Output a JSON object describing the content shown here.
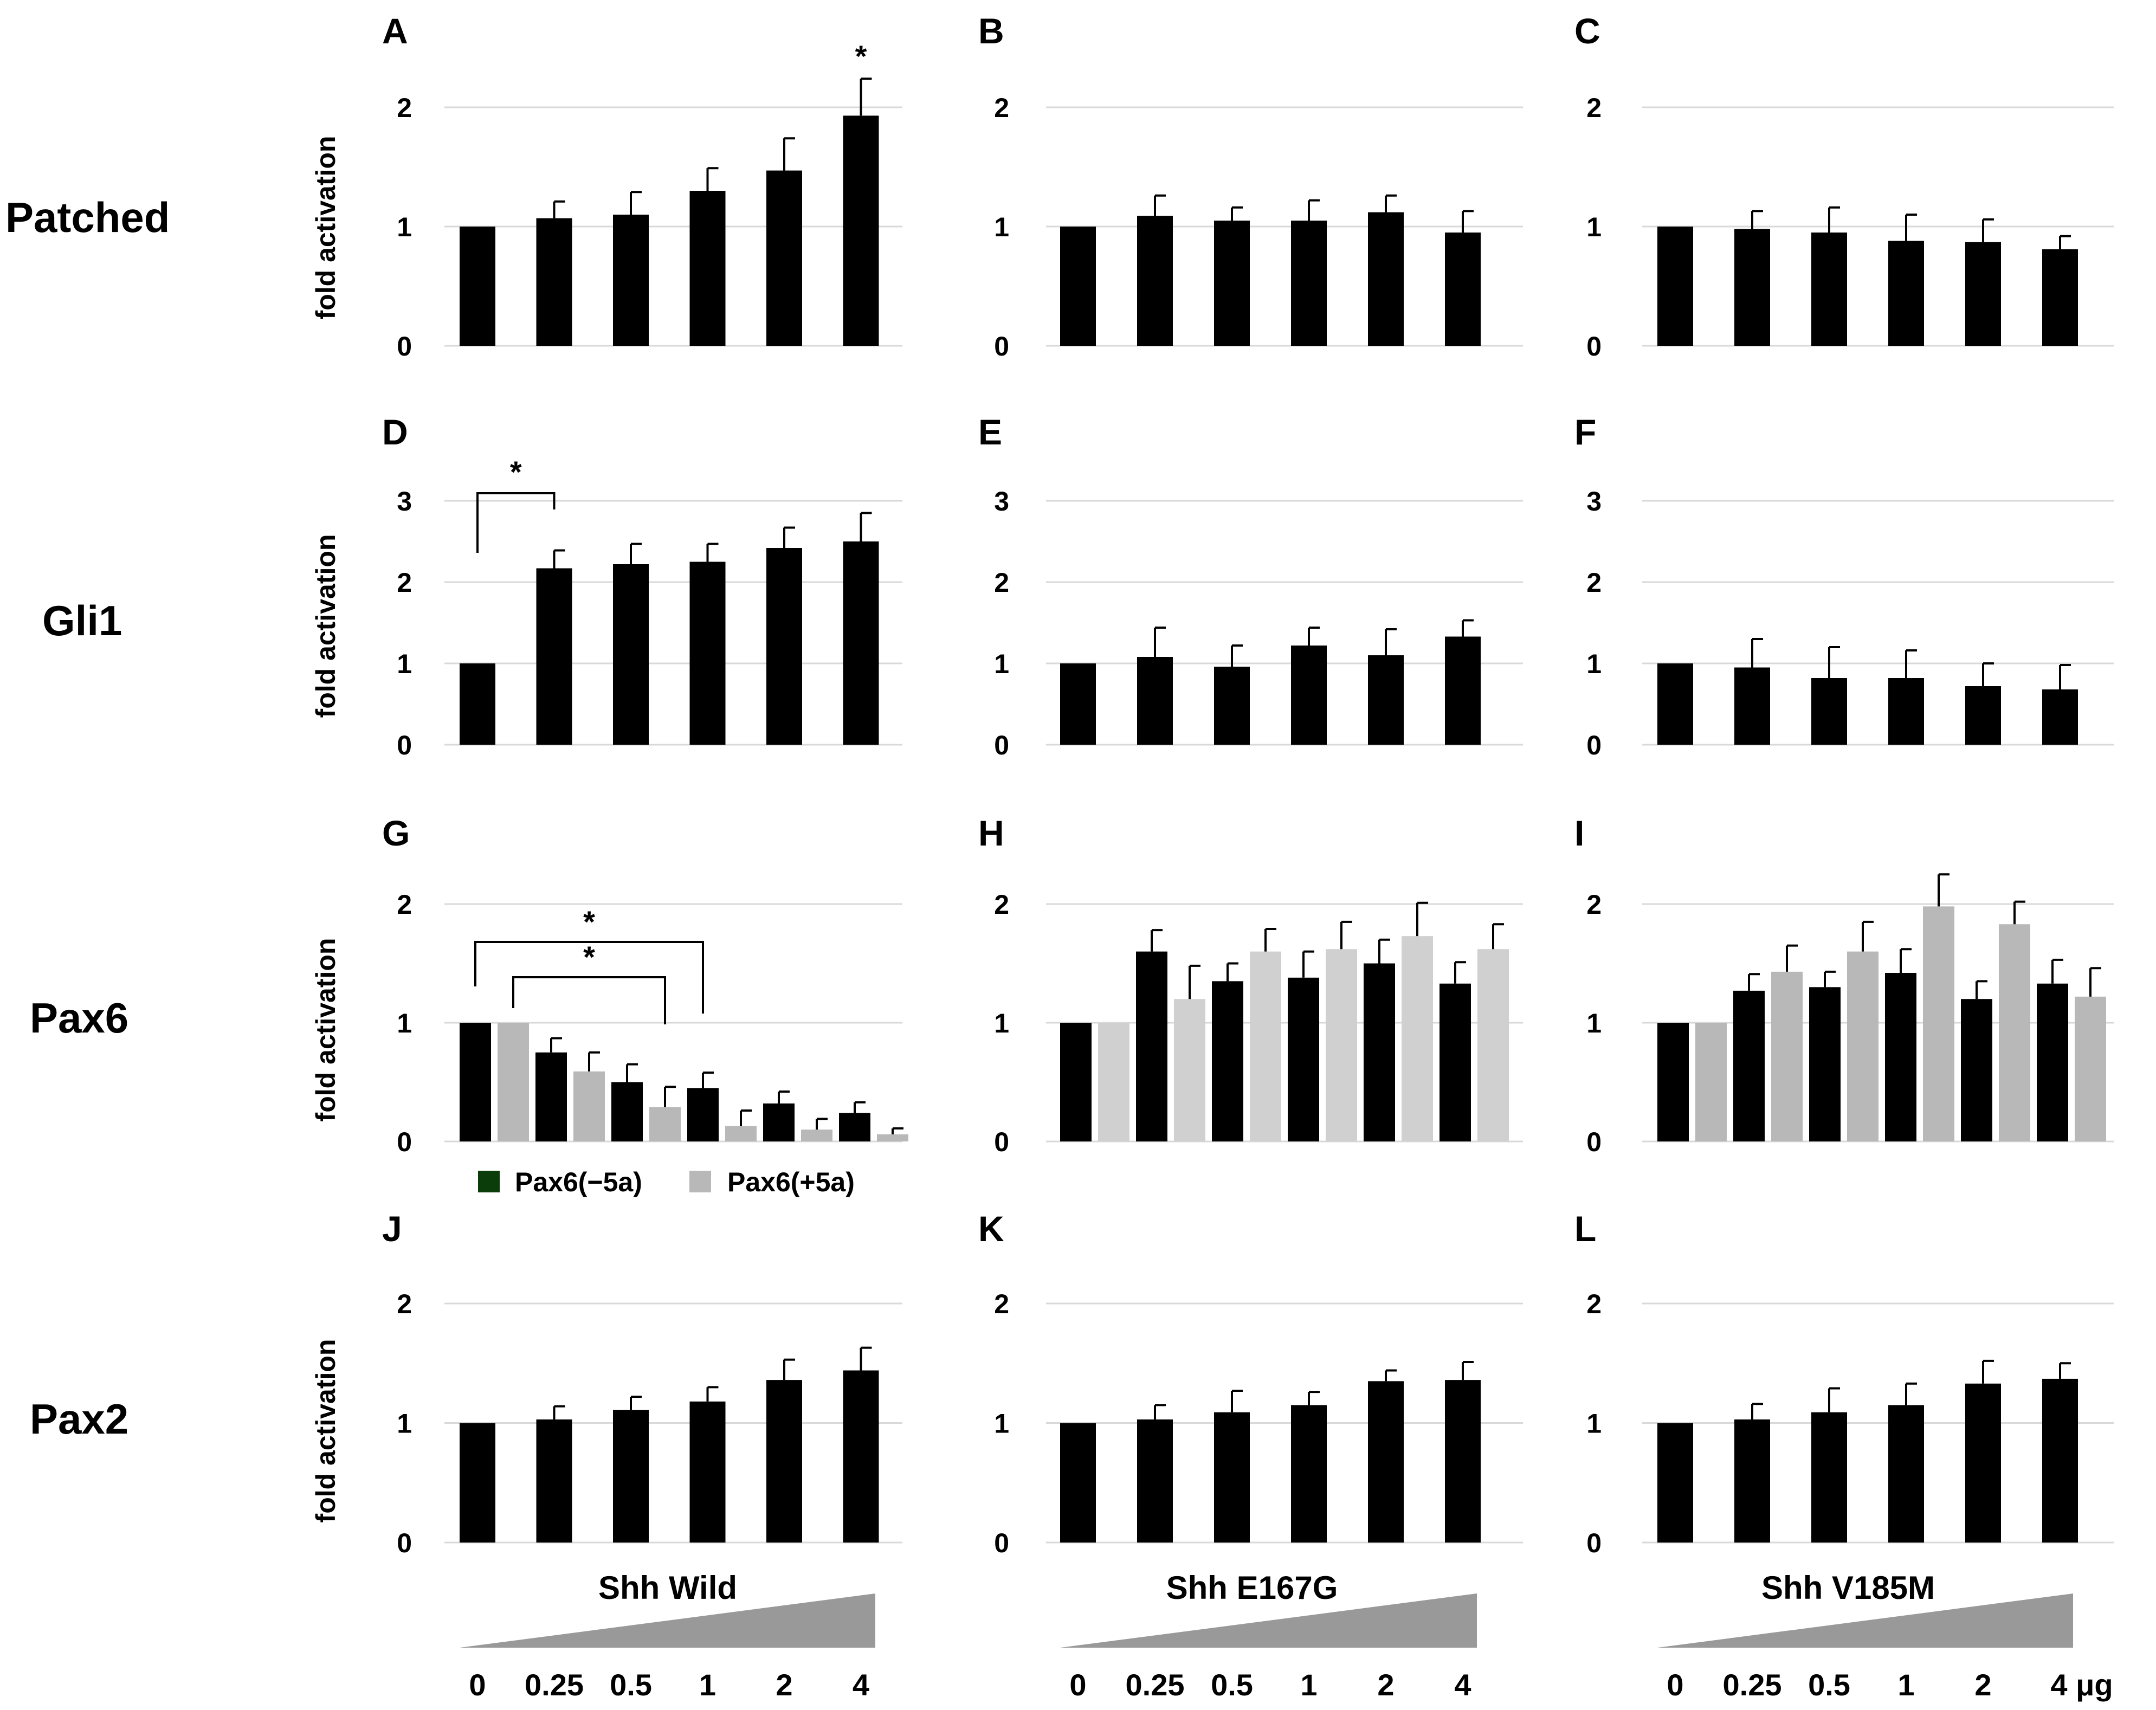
{
  "figure": {
    "row_labels": [
      "Patched",
      "Gli1",
      "Pax6",
      "Pax2"
    ],
    "ylabel": "fold activation",
    "column_titles": [
      "Shh Wild",
      "Shh E167G",
      "Shh V185M"
    ],
    "dose_labels": [
      "0",
      "0.25",
      "0.5",
      "1",
      "2",
      "4"
    ],
    "dose_unit": "μg",
    "legend": [
      {
        "label": "Pax6(−5a)",
        "color": "#0b3d0b"
      },
      {
        "label": "Pax6(+5a)",
        "color": "#b8b8b8"
      }
    ],
    "colors": {
      "bar_dark": "#000000",
      "bar_light": "#b8b8b8",
      "bar_lighter": "#d0d0d0",
      "grid": "#d9d9d9",
      "wedge": "#999999"
    }
  },
  "chart_data": [
    {
      "panel": "A",
      "type": "bar",
      "row": "Patched",
      "column": "Shh Wild",
      "ylim": [
        0,
        2
      ],
      "yticks": [
        0,
        1,
        2
      ],
      "categories": [
        "0",
        "0.25",
        "0.5",
        "1",
        "2",
        "4"
      ],
      "series": [
        {
          "values": [
            1.0,
            1.07,
            1.1,
            1.3,
            1.47,
            1.93
          ],
          "errors": [
            0,
            0.14,
            0.19,
            0.19,
            0.27,
            0.31
          ]
        }
      ],
      "annotations": [
        {
          "text": "*",
          "bar": 5
        }
      ]
    },
    {
      "panel": "B",
      "type": "bar",
      "row": "Patched",
      "column": "Shh E167G",
      "ylim": [
        0,
        2
      ],
      "yticks": [
        0,
        1,
        2
      ],
      "categories": [
        "0",
        "0.25",
        "0.5",
        "1",
        "2",
        "4"
      ],
      "series": [
        {
          "values": [
            1.0,
            1.09,
            1.05,
            1.05,
            1.12,
            0.95
          ],
          "errors": [
            0,
            0.17,
            0.11,
            0.17,
            0.14,
            0.18
          ]
        }
      ]
    },
    {
      "panel": "C",
      "type": "bar",
      "row": "Patched",
      "column": "Shh V185M",
      "ylim": [
        0,
        2
      ],
      "yticks": [
        0,
        1,
        2
      ],
      "categories": [
        "0",
        "0.25",
        "0.5",
        "1",
        "2",
        "4"
      ],
      "series": [
        {
          "values": [
            1.0,
            0.98,
            0.95,
            0.88,
            0.87,
            0.81
          ],
          "errors": [
            0,
            0.15,
            0.21,
            0.22,
            0.19,
            0.11
          ]
        }
      ]
    },
    {
      "panel": "D",
      "type": "bar",
      "row": "Gli1",
      "column": "Shh Wild",
      "ylim": [
        0,
        3
      ],
      "yticks": [
        0,
        1,
        2,
        3
      ],
      "categories": [
        "0",
        "0.25",
        "0.5",
        "1",
        "2",
        "4"
      ],
      "series": [
        {
          "values": [
            1.0,
            2.17,
            2.22,
            2.25,
            2.42,
            2.5
          ],
          "errors": [
            0,
            0.22,
            0.25,
            0.22,
            0.25,
            0.35
          ]
        }
      ],
      "annotations": [
        {
          "text": "*",
          "from": 0,
          "to": 1
        }
      ]
    },
    {
      "panel": "E",
      "type": "bar",
      "row": "Gli1",
      "column": "Shh E167G",
      "ylim": [
        0,
        3
      ],
      "yticks": [
        0,
        1,
        2,
        3
      ],
      "categories": [
        "0",
        "0.25",
        "0.5",
        "1",
        "2",
        "4"
      ],
      "series": [
        {
          "values": [
            1.0,
            1.08,
            0.96,
            1.22,
            1.1,
            1.33
          ],
          "errors": [
            0,
            0.36,
            0.26,
            0.22,
            0.32,
            0.2
          ]
        }
      ]
    },
    {
      "panel": "F",
      "type": "bar",
      "row": "Gli1",
      "column": "Shh V185M",
      "ylim": [
        0,
        3
      ],
      "yticks": [
        0,
        1,
        2,
        3
      ],
      "categories": [
        "0",
        "0.25",
        "0.5",
        "1",
        "2",
        "4"
      ],
      "series": [
        {
          "values": [
            1.0,
            0.95,
            0.82,
            0.82,
            0.72,
            0.68
          ],
          "errors": [
            0,
            0.35,
            0.38,
            0.34,
            0.28,
            0.3
          ]
        }
      ]
    },
    {
      "panel": "G",
      "type": "bar",
      "row": "Pax6",
      "column": "Shh Wild",
      "ylim": [
        0,
        2
      ],
      "yticks": [
        0,
        1,
        2
      ],
      "categories": [
        "0",
        "0.25",
        "0.5",
        "1",
        "2",
        "4"
      ],
      "series": [
        {
          "name": "Pax6(−5a)",
          "values": [
            1.0,
            0.75,
            0.5,
            0.45,
            0.32,
            0.24
          ],
          "errors": [
            0,
            0.12,
            0.15,
            0.13,
            0.1,
            0.09
          ]
        },
        {
          "name": "Pax6(+5a)",
          "values": [
            1.0,
            0.59,
            0.29,
            0.13,
            0.1,
            0.06
          ],
          "errors": [
            0,
            0.16,
            0.17,
            0.13,
            0.09,
            0.05
          ]
        }
      ],
      "annotations": [
        {
          "text": "*",
          "from": 0,
          "to": 6
        },
        {
          "text": "*",
          "from": 1,
          "to": 5
        }
      ]
    },
    {
      "panel": "H",
      "type": "bar",
      "row": "Pax6",
      "column": "Shh E167G",
      "ylim": [
        0,
        2
      ],
      "yticks": [
        0,
        1,
        2
      ],
      "categories": [
        "0",
        "0.25",
        "0.5",
        "1",
        "2",
        "4"
      ],
      "series": [
        {
          "name": "Pax6(−5a)",
          "values": [
            1.0,
            1.6,
            1.35,
            1.38,
            1.5,
            1.33
          ],
          "errors": [
            0,
            0.18,
            0.15,
            0.22,
            0.2,
            0.18
          ]
        },
        {
          "name": "Pax6(+5a)",
          "values": [
            1.0,
            1.2,
            1.6,
            1.62,
            1.73,
            1.62
          ],
          "errors": [
            0,
            0.28,
            0.19,
            0.23,
            0.28,
            0.21
          ]
        }
      ]
    },
    {
      "panel": "I",
      "type": "bar",
      "row": "Pax6",
      "column": "Shh V185M",
      "ylim": [
        0,
        2
      ],
      "yticks": [
        0,
        1,
        2
      ],
      "categories": [
        "0",
        "0.25",
        "0.5",
        "1",
        "2",
        "4"
      ],
      "series": [
        {
          "name": "Pax6(−5a)",
          "values": [
            1.0,
            1.27,
            1.3,
            1.42,
            1.2,
            1.33
          ],
          "errors": [
            0,
            0.14,
            0.13,
            0.2,
            0.15,
            0.2
          ]
        },
        {
          "name": "Pax6(+5a)",
          "values": [
            1.0,
            1.43,
            1.6,
            1.98,
            1.83,
            1.22
          ],
          "errors": [
            0,
            0.22,
            0.25,
            0.27,
            0.19,
            0.24
          ]
        }
      ]
    },
    {
      "panel": "J",
      "type": "bar",
      "row": "Pax2",
      "column": "Shh Wild",
      "ylim": [
        0,
        2
      ],
      "yticks": [
        0,
        1,
        2
      ],
      "categories": [
        "0",
        "0.25",
        "0.5",
        "1",
        "2",
        "4"
      ],
      "series": [
        {
          "values": [
            1.0,
            1.03,
            1.11,
            1.18,
            1.36,
            1.44
          ],
          "errors": [
            0,
            0.11,
            0.11,
            0.12,
            0.17,
            0.19
          ]
        }
      ]
    },
    {
      "panel": "K",
      "type": "bar",
      "row": "Pax2",
      "column": "Shh E167G",
      "ylim": [
        0,
        2
      ],
      "yticks": [
        0,
        1,
        2
      ],
      "categories": [
        "0",
        "0.25",
        "0.5",
        "1",
        "2",
        "4"
      ],
      "series": [
        {
          "values": [
            1.0,
            1.03,
            1.09,
            1.15,
            1.35,
            1.36
          ],
          "errors": [
            0,
            0.12,
            0.18,
            0.11,
            0.09,
            0.15
          ]
        }
      ]
    },
    {
      "panel": "L",
      "type": "bar",
      "row": "Pax2",
      "column": "Shh V185M",
      "ylim": [
        0,
        2
      ],
      "yticks": [
        0,
        1,
        2
      ],
      "categories": [
        "0",
        "0.25",
        "0.5",
        "1",
        "2",
        "4"
      ],
      "series": [
        {
          "values": [
            1.0,
            1.03,
            1.09,
            1.15,
            1.33,
            1.37
          ],
          "errors": [
            0,
            0.13,
            0.2,
            0.18,
            0.19,
            0.13
          ]
        }
      ]
    }
  ]
}
